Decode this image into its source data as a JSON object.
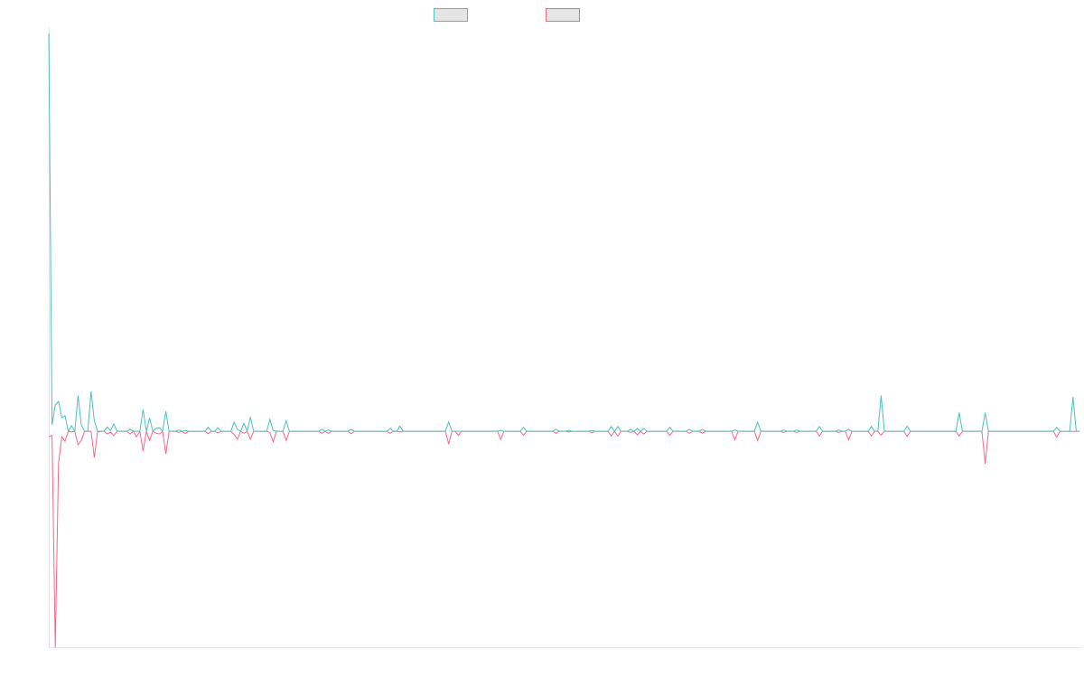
{
  "chart_data": {
    "type": "line",
    "title": "",
    "xlabel": "",
    "ylabel": "",
    "length": 318,
    "ylim": [
      -54.3,
      100
    ],
    "grid": false,
    "legend_position": "top",
    "series": [
      {
        "name": "",
        "color": "#4bc0c0"
      },
      {
        "name": "",
        "color": "#ff6384"
      }
    ],
    "nonzero_points": [
      {
        "i": 0,
        "a": 100,
        "b": -1.4
      },
      {
        "i": 1,
        "a": 1.6,
        "b": -1
      },
      {
        "i": 2,
        "a": 6.6,
        "b": -54.3
      },
      {
        "i": 3,
        "a": 7.5,
        "b": -8
      },
      {
        "i": 4,
        "a": 3.4,
        "b": -1.4
      },
      {
        "i": 5,
        "a": 3.9,
        "b": -2.5
      },
      {
        "i": 7,
        "a": 1.4,
        "b": -0.2
      },
      {
        "i": 9,
        "a": 9,
        "b": -3.4
      },
      {
        "i": 10,
        "a": 1.6,
        "b": -2.3
      },
      {
        "i": 13,
        "a": 10,
        "b": 0
      },
      {
        "i": 14,
        "a": 2.7,
        "b": -6.6
      },
      {
        "i": 15,
        "a": 0,
        "b": -0.2
      },
      {
        "i": 18,
        "a": 1.1,
        "b": -0.7
      },
      {
        "i": 19,
        "a": 0.2,
        "b": -0.2
      },
      {
        "i": 20,
        "a": 1.8,
        "b": -1.1
      },
      {
        "i": 25,
        "a": 0.5,
        "b": -0.7
      },
      {
        "i": 27,
        "a": 0,
        "b": -1.4
      },
      {
        "i": 29,
        "a": 5.5,
        "b": -5
      },
      {
        "i": 31,
        "a": 3.4,
        "b": -2.3
      },
      {
        "i": 33,
        "a": 0.7,
        "b": -0.5
      },
      {
        "i": 34,
        "a": 0.9,
        "b": -0.7
      },
      {
        "i": 36,
        "a": 5,
        "b": -5.7
      },
      {
        "i": 40,
        "a": 0.3,
        "b": -0.3
      },
      {
        "i": 42,
        "a": 0.2,
        "b": -0.6
      },
      {
        "i": 49,
        "a": 1,
        "b": -0.6
      },
      {
        "i": 52,
        "a": 0.9,
        "b": -0.4
      },
      {
        "i": 57,
        "a": 2.3,
        "b": -0.8
      },
      {
        "i": 58,
        "a": 0.5,
        "b": -2
      },
      {
        "i": 60,
        "a": 2,
        "b": -0.5
      },
      {
        "i": 62,
        "a": 3.6,
        "b": -2
      },
      {
        "i": 68,
        "a": 3,
        "b": -0.3
      },
      {
        "i": 69,
        "a": 0.2,
        "b": -2.7
      },
      {
        "i": 73,
        "a": 2.7,
        "b": -2.3
      },
      {
        "i": 84,
        "a": 0.5,
        "b": -0.5
      },
      {
        "i": 86,
        "a": 0.3,
        "b": -0.5
      },
      {
        "i": 93,
        "a": 0.5,
        "b": -0.6
      },
      {
        "i": 105,
        "a": 0.7,
        "b": -0.5
      },
      {
        "i": 108,
        "a": 1.3,
        "b": -0.2
      },
      {
        "i": 123,
        "a": 2.3,
        "b": -3.2
      },
      {
        "i": 126,
        "a": 0,
        "b": -1
      },
      {
        "i": 139,
        "a": 0.2,
        "b": -2
      },
      {
        "i": 146,
        "a": 1,
        "b": -1
      },
      {
        "i": 156,
        "a": 0.5,
        "b": -0.5
      },
      {
        "i": 160,
        "a": 0.2,
        "b": -0.2
      },
      {
        "i": 167,
        "a": 0.2,
        "b": -0.4
      },
      {
        "i": 173,
        "a": 1.2,
        "b": -1.2
      },
      {
        "i": 175,
        "a": 1.2,
        "b": -1.2
      },
      {
        "i": 179,
        "a": 0.5,
        "b": -0.3
      },
      {
        "i": 181,
        "a": 0.7,
        "b": -0.9
      },
      {
        "i": 183,
        "a": 0.7,
        "b": -0.7
      },
      {
        "i": 191,
        "a": 1,
        "b": -1
      },
      {
        "i": 197,
        "a": 0.5,
        "b": -0.5
      },
      {
        "i": 201,
        "a": 0.5,
        "b": -0.5
      },
      {
        "i": 211,
        "a": 0.3,
        "b": -2.2
      },
      {
        "i": 218,
        "a": 2.3,
        "b": -2.3
      },
      {
        "i": 226,
        "a": 0.3,
        "b": -0.3
      },
      {
        "i": 230,
        "a": 0.3,
        "b": -0.3
      },
      {
        "i": 237,
        "a": 1.2,
        "b": -1.2
      },
      {
        "i": 243,
        "a": 0.3,
        "b": -0.3
      },
      {
        "i": 246,
        "a": 0.5,
        "b": -2.2
      },
      {
        "i": 253,
        "a": 1.2,
        "b": -1.2
      },
      {
        "i": 256,
        "a": 9,
        "b": -1
      },
      {
        "i": 264,
        "a": 1.3,
        "b": -1.3
      },
      {
        "i": 280,
        "a": 4.7,
        "b": -1.2
      },
      {
        "i": 288,
        "a": 4.7,
        "b": -8.2
      },
      {
        "i": 310,
        "a": 1,
        "b": -1.5
      },
      {
        "i": 315,
        "a": 8.6,
        "b": 0
      }
    ]
  }
}
